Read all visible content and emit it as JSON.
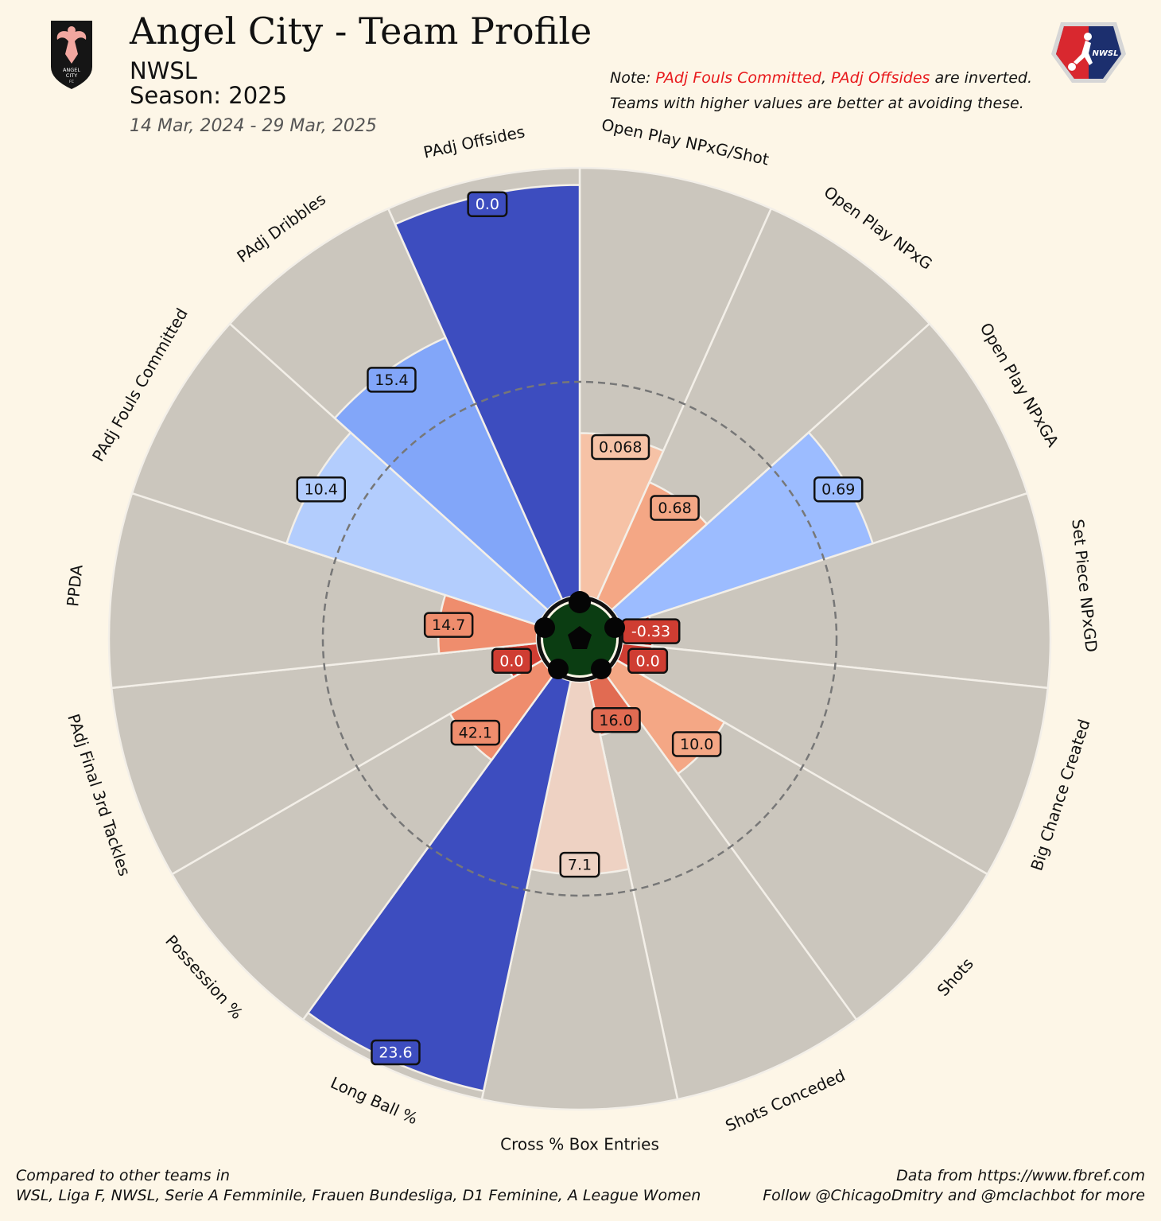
{
  "header": {
    "title": "Angel City - Team Profile",
    "league": "NWSL",
    "season": "Season: 2025",
    "date_range": "14 Mar, 2024 - 29 Mar, 2025"
  },
  "note": {
    "prefix": "Note: ",
    "item1": "PAdj Fouls Committed",
    "sep": ", ",
    "item2": "PAdj Offsides",
    "suffix": " are inverted.",
    "line2": "Teams with higher values are better at avoiding these."
  },
  "logos": {
    "team_text_1": "ANGEL",
    "team_text_2": "CITY",
    "team_text_3": "FC",
    "league_text": "NWSL"
  },
  "footer": {
    "left_line1": "Compared to other teams in",
    "left_line2": "WSL, Liga F, NWSL, Serie A Femminile, Frauen Bundesliga, D1 Feminine, A League Women",
    "right_line1": "Data from https://www.fbref.com",
    "right_line2": "Follow @ChicagoDmitry and @mclachbot for more"
  },
  "colors": {
    "background": "#fdf6e7",
    "wedge_background": "#cbc6bd",
    "reference_circle": "#777777"
  },
  "chart_data": {
    "type": "polar-bar",
    "title": "Angel City - Team Profile",
    "value_range": [
      0,
      100
    ],
    "reference_percentile": 50,
    "metrics": [
      {
        "label": "Open Play NPxG/Shot",
        "value_label": "0.068",
        "percentile": 38,
        "color": "#f6c2a6",
        "text_color": "#111111"
      },
      {
        "label": "Open Play NPxG",
        "value_label": "0.68",
        "percentile": 30,
        "color": "#f4a785",
        "text_color": "#111111"
      },
      {
        "label": "Open Play NPxGA",
        "value_label": "0.69",
        "percentile": 62,
        "color": "#9cbcff",
        "text_color": "#111111"
      },
      {
        "label": "Set Piece NPxGD",
        "value_label": "-0.33",
        "percentile": 7,
        "color": "#cf3d32",
        "text_color": "#ffffff"
      },
      {
        "label": "Big Chance Created",
        "value_label": "0.0",
        "percentile": 7,
        "color": "#cf3d32",
        "text_color": "#ffffff"
      },
      {
        "label": "Shots",
        "value_label": "10.0",
        "percentile": 29,
        "color": "#f4a785",
        "text_color": "#111111"
      },
      {
        "label": "Shots Conceded",
        "value_label": "16.0",
        "percentile": 13,
        "color": "#e16b52",
        "text_color": "#111111"
      },
      {
        "label": "Cross % Box Entries",
        "value_label": "7.1",
        "percentile": 45,
        "color": "#eed2c3",
        "text_color": "#111111"
      },
      {
        "label": "Long Ball %",
        "value_label": "23.6",
        "percentile": 98,
        "color": "#3d4dbf",
        "text_color": "#ffffff"
      },
      {
        "label": "Possession %",
        "value_label": "42.1",
        "percentile": 25,
        "color": "#ef8d6d",
        "text_color": "#111111"
      },
      {
        "label": "PAdj Final 3rd Tackles",
        "value_label": "0.0",
        "percentile": 8,
        "color": "#cf3d32",
        "text_color": "#ffffff"
      },
      {
        "label": "PPDA",
        "value_label": "14.7",
        "percentile": 23,
        "color": "#ef8d6d",
        "text_color": "#111111"
      },
      {
        "label": "PAdj Fouls Committed",
        "value_label": "10.4",
        "percentile": 62,
        "color": "#b3cdfd",
        "text_color": "#111111"
      },
      {
        "label": "PAdj Dribbles",
        "value_label": "15.4",
        "percentile": 67,
        "color": "#82a6f9",
        "text_color": "#111111"
      },
      {
        "label": "PAdj Offsides",
        "value_label": "0.0",
        "percentile": 96,
        "color": "#3d4dbf",
        "text_color": "#ffffff"
      }
    ]
  }
}
